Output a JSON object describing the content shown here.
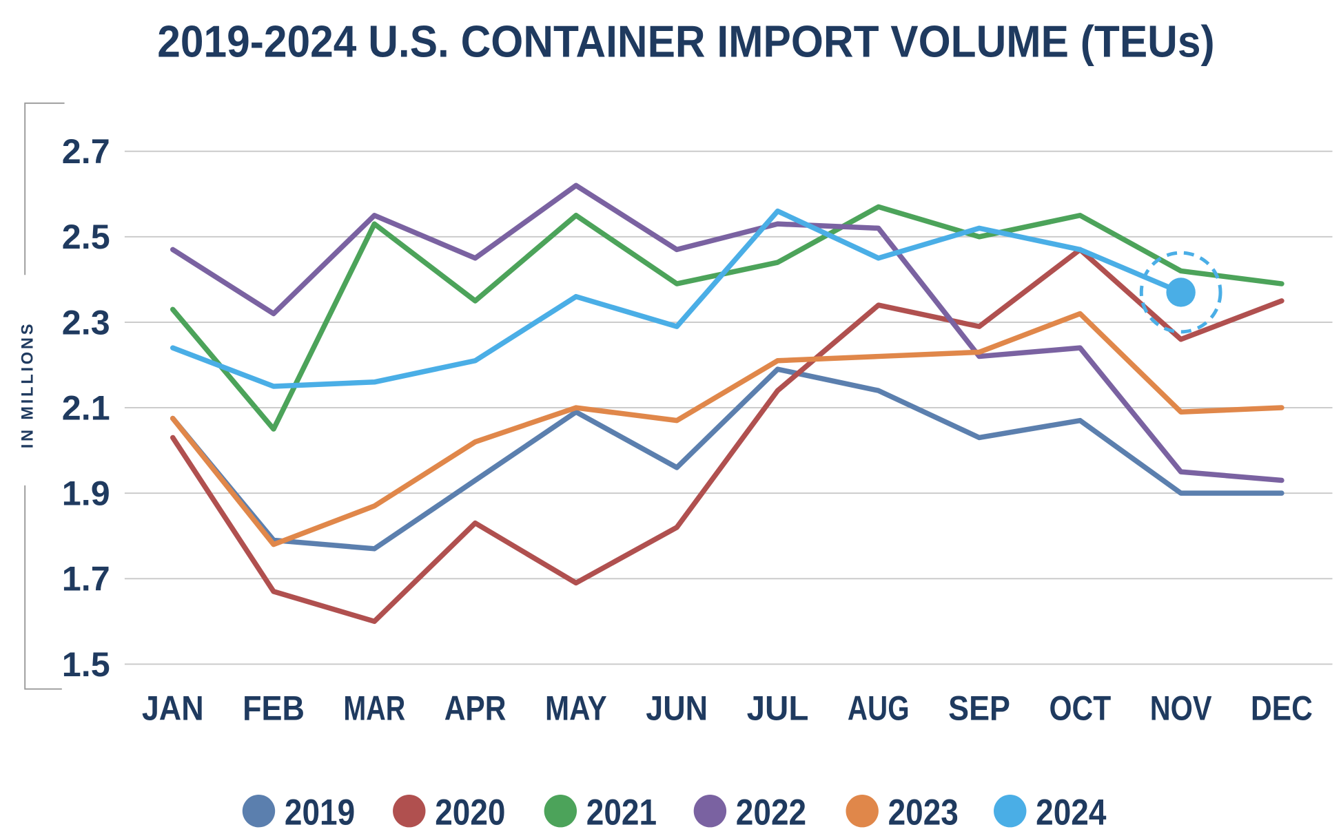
{
  "chart_data": {
    "type": "line",
    "title": "2019-2024 U.S. CONTAINER IMPORT VOLUME (TEUs)",
    "xlabel": "",
    "ylabel": "IN MILLIONS",
    "ylim": [
      1.5,
      2.7
    ],
    "yticks": [
      "2.7",
      "2.5",
      "2.3",
      "2.1",
      "1.9",
      "1.7",
      "1.5"
    ],
    "ytick_values": [
      2.7,
      2.5,
      2.3,
      2.1,
      1.9,
      1.7,
      1.5
    ],
    "categories": [
      "JAN",
      "FEB",
      "MAR",
      "APR",
      "MAY",
      "JUN",
      "JUL",
      "AUG",
      "SEP",
      "OCT",
      "NOV",
      "DEC"
    ],
    "grid": true,
    "legend_position": "bottom",
    "series": [
      {
        "name": "2019",
        "color": "#5b7fae",
        "values": [
          2.075,
          1.79,
          1.77,
          1.93,
          2.09,
          1.96,
          2.19,
          2.14,
          2.03,
          2.07,
          1.9,
          1.9
        ]
      },
      {
        "name": "2020",
        "color": "#b0504f",
        "values": [
          2.03,
          1.67,
          1.6,
          1.83,
          1.69,
          1.82,
          2.14,
          2.34,
          2.29,
          2.47,
          2.26,
          2.35
        ]
      },
      {
        "name": "2021",
        "color": "#4ca35a",
        "values": [
          2.33,
          2.05,
          2.53,
          2.35,
          2.55,
          2.39,
          2.44,
          2.57,
          2.5,
          2.55,
          2.42,
          2.39
        ]
      },
      {
        "name": "2022",
        "color": "#7a62a1",
        "values": [
          2.47,
          2.32,
          2.55,
          2.45,
          2.62,
          2.47,
          2.53,
          2.52,
          2.22,
          2.24,
          1.95,
          1.93
        ]
      },
      {
        "name": "2023",
        "color": "#e0874a",
        "values": [
          2.075,
          1.78,
          1.87,
          2.02,
          2.1,
          2.07,
          2.21,
          2.22,
          2.23,
          2.32,
          2.09,
          2.1
        ]
      },
      {
        "name": "2024",
        "color": "#4aaee6",
        "values": [
          2.24,
          2.15,
          2.16,
          2.21,
          2.36,
          2.29,
          2.56,
          2.45,
          2.52,
          2.47,
          2.37,
          null
        ]
      }
    ],
    "highlight": {
      "series": "2024",
      "category": "NOV"
    }
  }
}
